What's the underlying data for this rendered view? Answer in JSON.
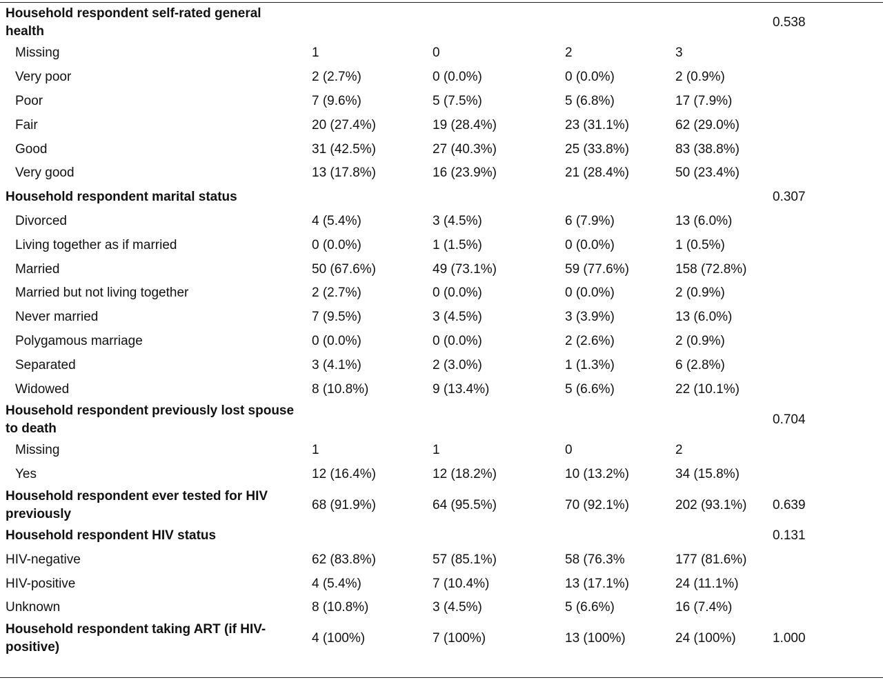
{
  "sections": [
    {
      "title": "Household respondent self-rated general health",
      "title_lines": [
        "Household respondent self-rated general",
        "health"
      ],
      "p_value": "0.538",
      "rows": [
        {
          "label": "Missing",
          "values": [
            "1",
            "0",
            "2",
            "3"
          ]
        },
        {
          "label": "Very poor",
          "values": [
            "2 (2.7%)",
            "0 (0.0%)",
            "0 (0.0%)",
            "2 (0.9%)"
          ]
        },
        {
          "label": "Poor",
          "values": [
            "7 (9.6%)",
            "5 (7.5%)",
            "5 (6.8%)",
            "17 (7.9%)"
          ]
        },
        {
          "label": "Fair",
          "values": [
            "20 (27.4%)",
            "19 (28.4%)",
            "23 (31.1%)",
            "62 (29.0%)"
          ]
        },
        {
          "label": "Good",
          "values": [
            "31 (42.5%)",
            "27 (40.3%)",
            "25 (33.8%)",
            "83 (38.8%)"
          ]
        },
        {
          "label": "Very good",
          "values": [
            "13 (17.8%)",
            "16 (23.9%)",
            "21 (28.4%)",
            "50 (23.4%)"
          ]
        }
      ]
    },
    {
      "title": "Household respondent marital status",
      "p_value": "0.307",
      "rows": [
        {
          "label": "Divorced",
          "values": [
            "4 (5.4%)",
            "3 (4.5%)",
            "6 (7.9%)",
            "13 (6.0%)"
          ]
        },
        {
          "label": "Living together as if married",
          "values": [
            "0 (0.0%)",
            "1 (1.5%)",
            "0 (0.0%)",
            "1 (0.5%)"
          ]
        },
        {
          "label": "Married",
          "values": [
            "50 (67.6%)",
            "49 (73.1%)",
            "59 (77.6%)",
            "158 (72.8%)"
          ]
        },
        {
          "label": "Married but not living together",
          "values": [
            "2 (2.7%)",
            "0 (0.0%)",
            "0 (0.0%)",
            "2 (0.9%)"
          ]
        },
        {
          "label": "Never married",
          "values": [
            "7 (9.5%)",
            "3 (4.5%)",
            "3 (3.9%)",
            "13 (6.0%)"
          ]
        },
        {
          "label": "Polygamous marriage",
          "values": [
            "0 (0.0%)",
            "0 (0.0%)",
            "2 (2.6%)",
            "2 (0.9%)"
          ]
        },
        {
          "label": "Separated",
          "values": [
            "3 (4.1%)",
            "2 (3.0%)",
            "1 (1.3%)",
            "6 (2.8%)"
          ]
        },
        {
          "label": "Widowed",
          "values": [
            "8 (10.8%)",
            "9 (13.4%)",
            "5 (6.6%)",
            "22 (10.1%)"
          ]
        }
      ]
    },
    {
      "title": "Household respondent previously lost spouse to death",
      "title_lines": [
        "Household respondent previously lost spouse",
        "to death"
      ],
      "p_value": "0.704",
      "rows": [
        {
          "label": "Missing",
          "values": [
            "1",
            "1",
            "0",
            "2"
          ]
        },
        {
          "label": "Yes",
          "values": [
            "12 (16.4%)",
            "12 (18.2%)",
            "10 (13.2%)",
            "34 (15.8%)"
          ]
        }
      ]
    },
    {
      "title": "Household respondent ever tested for HIV previously",
      "title_lines": [
        "Household respondent ever tested for HIV",
        "previously"
      ],
      "values": [
        "68 (91.9%)",
        "64 (95.5%)",
        "70 (92.1%)",
        "202 (93.1%)"
      ],
      "p_value": "0.639"
    },
    {
      "title": "Household respondent HIV status",
      "p_value": "0.131",
      "rows": [
        {
          "label": "HIV-negative",
          "values": [
            "62 (83.8%)",
            "57 (85.1%)",
            "58 (76.3%",
            "177 (81.6%)"
          ]
        },
        {
          "label": "HIV-positive",
          "values": [
            "4 (5.4%)",
            "7 (10.4%)",
            "13 (17.1%)",
            "24 (11.1%)"
          ]
        },
        {
          "label": "Unknown",
          "values": [
            "8 (10.8%)",
            "3 (4.5%)",
            "5 (6.6%)",
            "16 (7.4%)"
          ]
        }
      ]
    },
    {
      "title": "Household respondent taking ART (if HIV-positive)",
      "title_lines": [
        "Household respondent taking ART (if HIV-",
        "positive)"
      ],
      "values": [
        "4 (100%)",
        "7 (100%)",
        "13 (100%)",
        "24 (100%)"
      ],
      "p_value": "1.000"
    }
  ]
}
